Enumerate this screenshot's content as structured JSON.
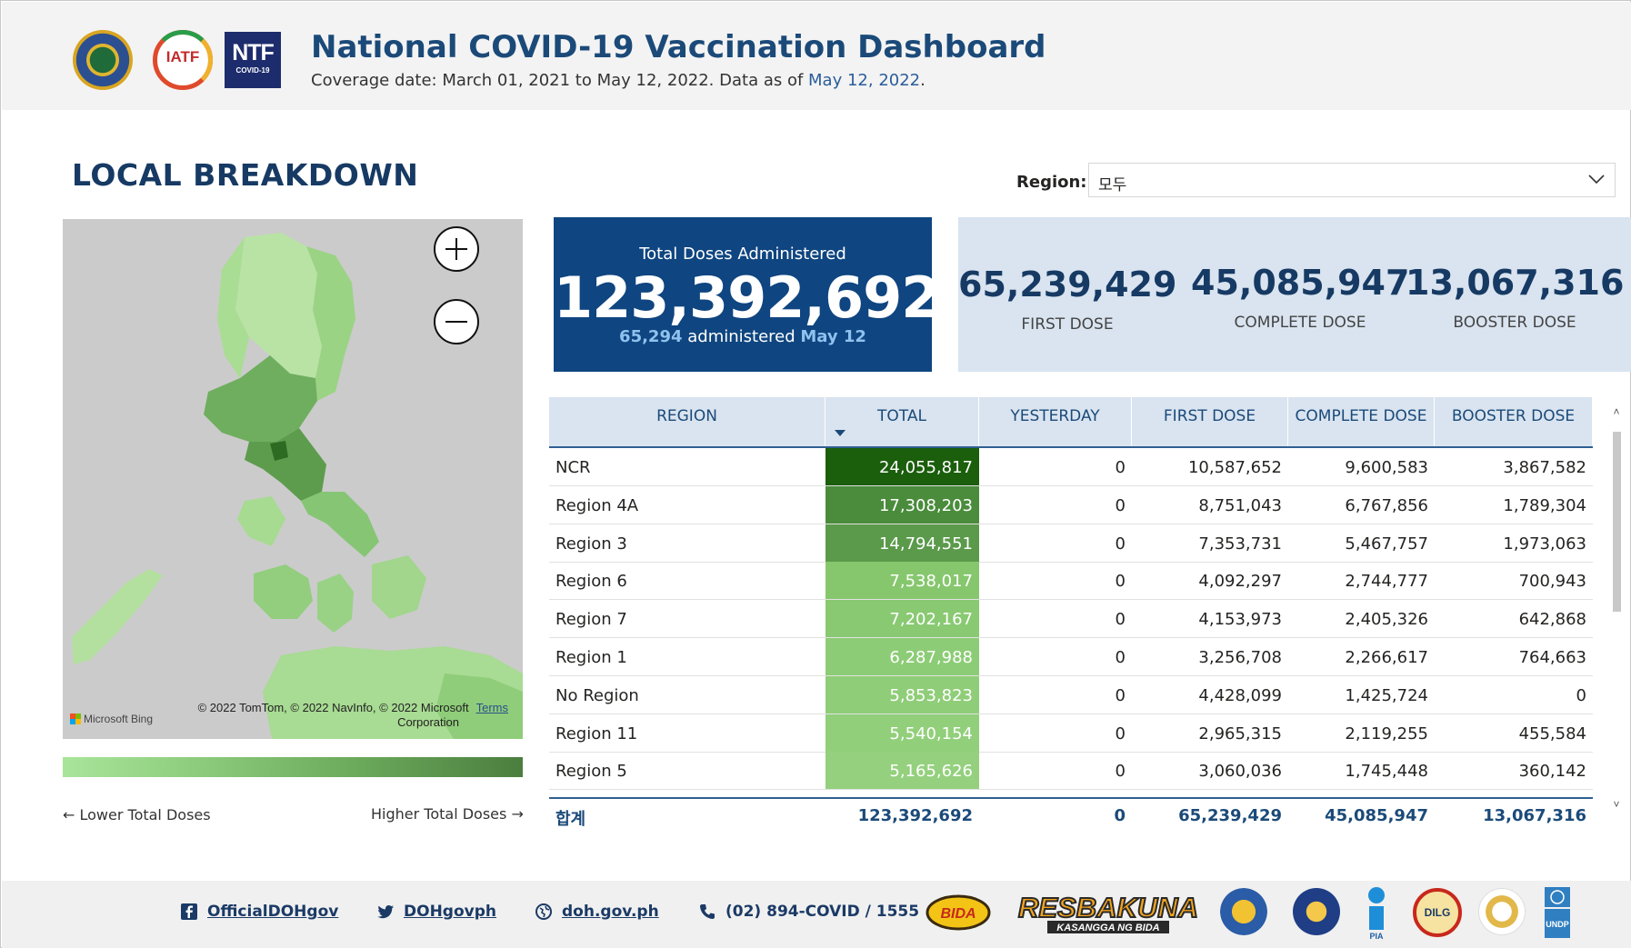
{
  "header": {
    "title": "National COVID-19 Vaccination Dashboard",
    "coverage_prefix": "Coverage date: March 01, 2021 to May 12, 2022. Data as of ",
    "coverage_date": "May 12, 2022",
    "coverage_suffix": ".",
    "logos": {
      "iatf_text": "IATF",
      "ntf_big": "NTF",
      "ntf_small": "COVID-19"
    }
  },
  "breakdown": {
    "title": "LOCAL BREAKDOWN",
    "region_filter": {
      "label": "Region:",
      "value": "모두"
    }
  },
  "map": {
    "attribution": "© 2022 TomTom, © 2022 NavInfo, © 2022 Microsoft",
    "attribution_line2": "Corporation",
    "terms": "Terms",
    "provider": "Microsoft Bing",
    "legend_low": "← Lower Total Doses",
    "legend_high": "Higher Total Doses →"
  },
  "kpi": {
    "total": {
      "label": "Total Doses Administered",
      "value": "123,392,692",
      "today_count": "65,294",
      "today_text": " administered ",
      "today_date": "May 12"
    },
    "first": {
      "value": "65,239,429",
      "label": "FIRST DOSE"
    },
    "complete": {
      "value": "45,085,947",
      "label": "COMPLETE DOSE"
    },
    "booster": {
      "value": "13,067,316",
      "label": "BOOSTER DOSE"
    }
  },
  "table": {
    "columns": [
      "REGION",
      "TOTAL",
      "YESTERDAY",
      "FIRST DOSE",
      "COMPLETE DOSE",
      "BOOSTER DOSE"
    ],
    "rows": [
      {
        "region": "NCR",
        "total": "24,055,817",
        "yesterday": "0",
        "first": "10,587,652",
        "complete": "9,600,583",
        "booster": "3,867,582",
        "shade": "#1b5e0c"
      },
      {
        "region": "Region 4A",
        "total": "17,308,203",
        "yesterday": "0",
        "first": "8,751,043",
        "complete": "6,767,856",
        "booster": "1,789,304",
        "shade": "#4a8c3c"
      },
      {
        "region": "Region 3",
        "total": "14,794,551",
        "yesterday": "0",
        "first": "7,353,731",
        "complete": "5,467,757",
        "booster": "1,973,063",
        "shade": "#5b9a4b"
      },
      {
        "region": "Region 6",
        "total": "7,538,017",
        "yesterday": "0",
        "first": "4,092,297",
        "complete": "2,744,777",
        "booster": "700,943",
        "shade": "#86c76e"
      },
      {
        "region": "Region 7",
        "total": "7,202,167",
        "yesterday": "0",
        "first": "4,153,973",
        "complete": "2,405,326",
        "booster": "642,868",
        "shade": "#89c972"
      },
      {
        "region": "Region 1",
        "total": "6,287,988",
        "yesterday": "0",
        "first": "3,256,708",
        "complete": "2,266,617",
        "booster": "764,663",
        "shade": "#8dcc76"
      },
      {
        "region": "No Region",
        "total": "5,853,823",
        "yesterday": "0",
        "first": "4,428,099",
        "complete": "1,425,724",
        "booster": "0",
        "shade": "#8fcd78"
      },
      {
        "region": "Region 11",
        "total": "5,540,154",
        "yesterday": "0",
        "first": "2,965,315",
        "complete": "2,119,255",
        "booster": "455,584",
        "shade": "#92cf7b"
      },
      {
        "region": "Region 5",
        "total": "5,165,626",
        "yesterday": "0",
        "first": "3,060,036",
        "complete": "1,745,448",
        "booster": "360,142",
        "shade": "#94d07d"
      }
    ],
    "footer": {
      "label": "합계",
      "total": "123,392,692",
      "yesterday": "0",
      "first": "65,239,429",
      "complete": "45,085,947",
      "booster": "13,067,316"
    }
  },
  "footer": {
    "facebook": "OfficialDOHgov",
    "twitter": "DOHgovph",
    "website": "doh.gov.ph",
    "phone": "(02) 894-COVID / 1555",
    "resbakuna": "RESBAKUNA",
    "resbakuna_sub": "KASANGGA NG BIDA",
    "bida": "BIDA",
    "pia": "PIA",
    "dilg": "DILG",
    "undp": "UNDP"
  },
  "colors": {
    "navy": "#0f4580",
    "title_blue": "#1b4a79",
    "panel_blue": "#d9e4f0",
    "map_bg": "#cbcbcb"
  }
}
